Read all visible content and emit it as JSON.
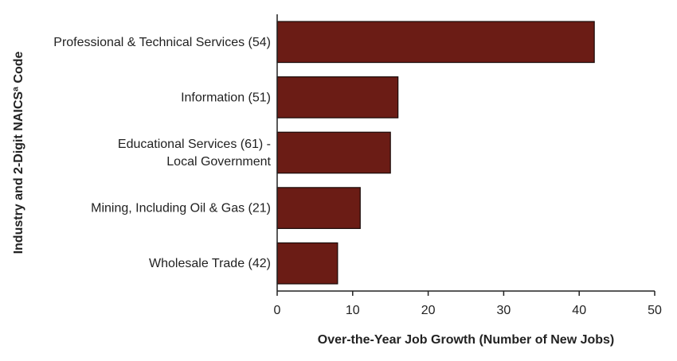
{
  "chart_data": {
    "type": "bar",
    "orientation": "horizontal",
    "categories": [
      [
        "Professional & Technical Services (54)"
      ],
      [
        "Information (51)"
      ],
      [
        "Educational Services (61) -",
        "Local Government"
      ],
      [
        "Mining, Including Oil & Gas (21)"
      ],
      [
        "Wholesale Trade (42)"
      ]
    ],
    "values": [
      42,
      16,
      15,
      11,
      8
    ],
    "xlabel": "Over-the-Year Job Growth (Number of New Jobs)",
    "ylabel": "Industry and 2-Digit NAICSª Code",
    "xlim": [
      0,
      50
    ],
    "xticks": [
      0,
      10,
      20,
      30,
      40,
      50
    ],
    "grid": false,
    "bar_color": "#6b1c15",
    "bar_edge_color": "#1a0a08"
  }
}
